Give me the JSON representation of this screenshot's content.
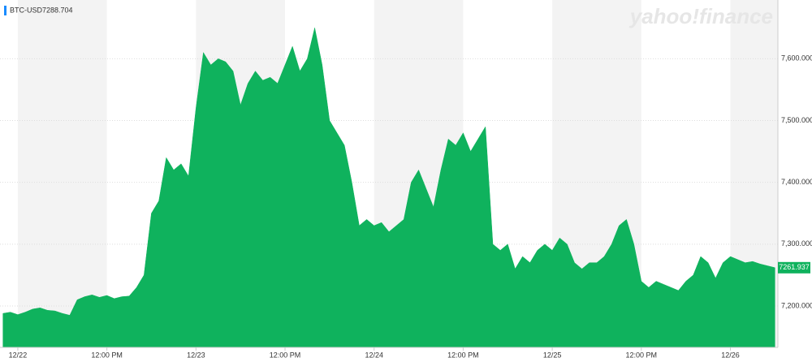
{
  "chart_data": {
    "type": "area",
    "logo": "yahoo!finance",
    "series": [
      {
        "name": "BTC-USD",
        "color": "#0fb25d",
        "values": [
          7188,
          7190,
          7186,
          7190,
          7195,
          7197,
          7193,
          7192,
          7188,
          7185,
          7210,
          7215,
          7218,
          7214,
          7217,
          7212,
          7215,
          7216,
          7230,
          7250,
          7350,
          7370,
          7440,
          7420,
          7430,
          7410,
          7520,
          7610,
          7590,
          7600,
          7595,
          7580,
          7525,
          7560,
          7580,
          7565,
          7570,
          7560,
          7590,
          7620,
          7580,
          7600,
          7650,
          7590,
          7500,
          7480,
          7460,
          7400,
          7330,
          7340,
          7330,
          7335,
          7320,
          7330,
          7340,
          7400,
          7420,
          7390,
          7360,
          7420,
          7470,
          7460,
          7480,
          7450,
          7470,
          7490,
          7300,
          7290,
          7300,
          7260,
          7280,
          7270,
          7290,
          7300,
          7290,
          7310,
          7300,
          7270,
          7260,
          7270,
          7270,
          7280,
          7300,
          7330,
          7340,
          7300,
          7240,
          7230,
          7240,
          7235,
          7230,
          7225,
          7240,
          7250,
          7280,
          7270,
          7245,
          7270,
          7280,
          7275,
          7270,
          7272,
          7268,
          7265,
          7262
        ]
      }
    ],
    "x": [
      -2,
      -1,
      0,
      1,
      2,
      3,
      4,
      5,
      6,
      7,
      8,
      9,
      10,
      11,
      12,
      13,
      14,
      15,
      16,
      17,
      18,
      19,
      20,
      21,
      22,
      23,
      24,
      25,
      26,
      27,
      28,
      29,
      30,
      31,
      32,
      33,
      34,
      35,
      36,
      37,
      38,
      39,
      40,
      41,
      42,
      43,
      44,
      45,
      46,
      47,
      48,
      49,
      50,
      51,
      52,
      53,
      54,
      55,
      56,
      57,
      58,
      59,
      60,
      61,
      62,
      63,
      64,
      65,
      66,
      67,
      68,
      69,
      70,
      71,
      72,
      73,
      74,
      75,
      76,
      77,
      78,
      79,
      80,
      81,
      82,
      83,
      84,
      85,
      86,
      87,
      88,
      89,
      90,
      91,
      92,
      93,
      94,
      95,
      96,
      97,
      98,
      99,
      100,
      101,
      102
    ],
    "legend_value": 7288.704,
    "last_value": 7261.937,
    "xlim": [
      -2.4,
      102.4
    ],
    "xticks": [
      {
        "value": 0,
        "label": "12/22"
      },
      {
        "value": 12,
        "label": "12:00 PM"
      },
      {
        "value": 24,
        "label": "12/23"
      },
      {
        "value": 36,
        "label": "12:00 PM"
      },
      {
        "value": 48,
        "label": "12/24"
      },
      {
        "value": 60,
        "label": "12:00 PM"
      },
      {
        "value": 72,
        "label": "12/25"
      },
      {
        "value": 84,
        "label": "12:00 PM"
      },
      {
        "value": 96,
        "label": "12/26"
      }
    ],
    "ylim": [
      7133,
      7695
    ],
    "yticks": [
      {
        "value": 7200,
        "label": "7,200.000"
      },
      {
        "value": 7300,
        "label": "7,300.000"
      },
      {
        "value": 7400,
        "label": "7,400.000"
      },
      {
        "value": 7500,
        "label": "7,500.000"
      },
      {
        "value": 7600,
        "label": "7,600.000"
      }
    ],
    "grid": true
  }
}
